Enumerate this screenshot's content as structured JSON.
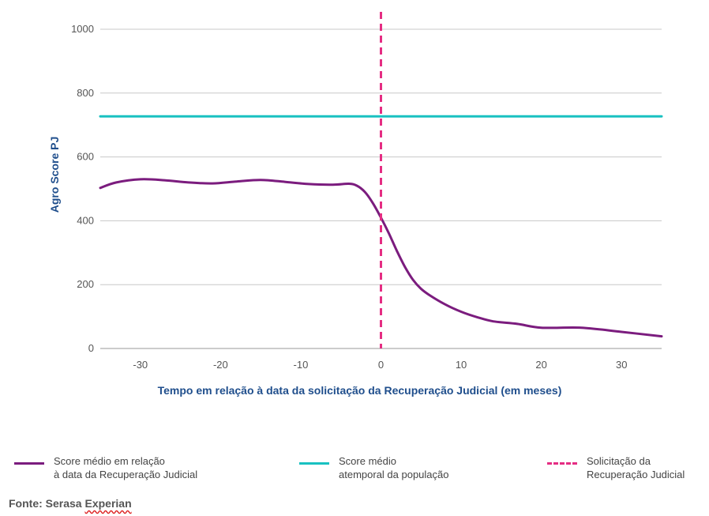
{
  "chart_data": {
    "type": "line",
    "title": "",
    "xlabel": "Tempo em relação à data da solicitação da Recuperação Judicial (em meses)",
    "ylabel": "Agro Score PJ",
    "xlim": [
      -35,
      35
    ],
    "ylim": [
      0,
      1000
    ],
    "x_ticks": [
      -30,
      -20,
      -10,
      0,
      10,
      20,
      30
    ],
    "y_ticks": [
      0,
      200,
      400,
      600,
      800,
      1000
    ],
    "grid": "horizontal",
    "legend_position": "bottom",
    "series": [
      {
        "name": "Score médio em relação à data da Recuperação Judicial",
        "color": "#7b1c7e",
        "style": "solid",
        "x": [
          -35,
          -33,
          -30,
          -27,
          -24,
          -21,
          -18,
          -15,
          -12,
          -9,
          -6,
          -4,
          -3,
          -2,
          -1,
          0,
          1,
          2,
          3,
          4,
          5,
          6,
          8,
          10,
          12,
          14,
          17,
          20,
          25,
          30,
          35
        ],
        "y": [
          503,
          520,
          530,
          527,
          520,
          517,
          523,
          528,
          522,
          515,
          513,
          516,
          510,
          490,
          455,
          410,
          360,
          305,
          255,
          215,
          187,
          168,
          138,
          115,
          98,
          85,
          77,
          65,
          65,
          52,
          38
        ]
      },
      {
        "name": "Score médio atemporal da população",
        "color": "#19c1c1",
        "style": "solid",
        "x": [
          -35,
          35
        ],
        "y": [
          727,
          727
        ]
      }
    ],
    "vertical_markers": [
      {
        "name": "Solicitação da Recuperação Judicial",
        "x": 0,
        "color": "#e52d83",
        "style": "dashed"
      }
    ]
  },
  "legend": [
    {
      "label": "Score médio em relação\nà data da Recuperação Judicial",
      "color": "#7b1c7e",
      "style": "solid"
    },
    {
      "label": "Score médio\natemporal da população",
      "color": "#19c1c1",
      "style": "solid"
    },
    {
      "label": "Solicitação da\nRecuperação Judicial",
      "color": "#e52d83",
      "style": "dashed"
    }
  ],
  "source": {
    "prefix": "Fonte: Serasa ",
    "underlined": "Experian"
  }
}
